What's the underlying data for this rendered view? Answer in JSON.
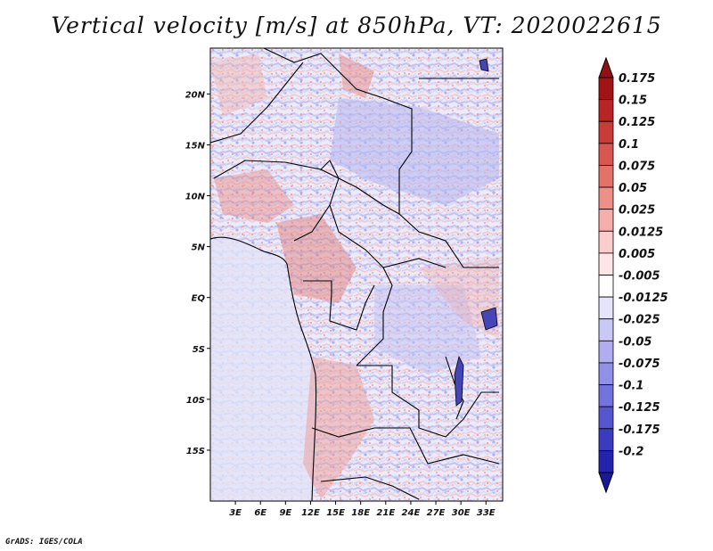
{
  "title": "Vertical velocity [m/s] at 850hPa, VT: 2020022615",
  "credit": "GrADS: IGES/COLA",
  "map": {
    "variable": "Vertical velocity",
    "units": "m/s",
    "level": "850hPa",
    "valid_time": "2020022615",
    "lon_range": [
      0,
      35
    ],
    "lat_range": [
      -20,
      24.5
    ],
    "lat_ticks": [
      {
        "value": 20,
        "label": "20N"
      },
      {
        "value": 15,
        "label": "15N"
      },
      {
        "value": 10,
        "label": "10N"
      },
      {
        "value": 5,
        "label": "5N"
      },
      {
        "value": 0,
        "label": "EQ"
      },
      {
        "value": -5,
        "label": "5S"
      },
      {
        "value": -10,
        "label": "10S"
      },
      {
        "value": -15,
        "label": "15S"
      }
    ],
    "lon_ticks": [
      {
        "value": 3,
        "label": "3E"
      },
      {
        "value": 6,
        "label": "6E"
      },
      {
        "value": 9,
        "label": "9E"
      },
      {
        "value": 12,
        "label": "12E"
      },
      {
        "value": 15,
        "label": "15E"
      },
      {
        "value": 18,
        "label": "18E"
      },
      {
        "value": 21,
        "label": "21E"
      },
      {
        "value": 24,
        "label": "24E"
      },
      {
        "value": 27,
        "label": "27E"
      },
      {
        "value": 30,
        "label": "30E"
      },
      {
        "value": 33,
        "label": "33E"
      }
    ]
  },
  "colorbar": {
    "levels": [
      {
        "label": "0.175",
        "color": "#a01416"
      },
      {
        "label": "0.15",
        "color": "#b72524"
      },
      {
        "label": "0.125",
        "color": "#c83b37"
      },
      {
        "label": "0.1",
        "color": "#d75750"
      },
      {
        "label": "0.075",
        "color": "#e37369"
      },
      {
        "label": "0.05",
        "color": "#ed9088"
      },
      {
        "label": "0.025",
        "color": "#f5aeaa"
      },
      {
        "label": "0.0125",
        "color": "#f9cdcb"
      },
      {
        "label": "0.005",
        "color": "#fde6e5"
      },
      {
        "label": "-0.005",
        "color": "#ffffff"
      },
      {
        "label": "-0.0125",
        "color": "#e4e4fb"
      },
      {
        "label": "-0.025",
        "color": "#c9c9f6"
      },
      {
        "label": "-0.05",
        "color": "#aeaef1"
      },
      {
        "label": "-0.075",
        "color": "#9090e8"
      },
      {
        "label": "-0.1",
        "color": "#7373de"
      },
      {
        "label": "-0.125",
        "color": "#5656d0"
      },
      {
        "label": "-0.175",
        "color": "#3b3bc0"
      },
      {
        "label": "-0.2",
        "color": "#2323ab"
      }
    ],
    "top_color": "#941014",
    "bottom_color": "#1a1a99"
  }
}
